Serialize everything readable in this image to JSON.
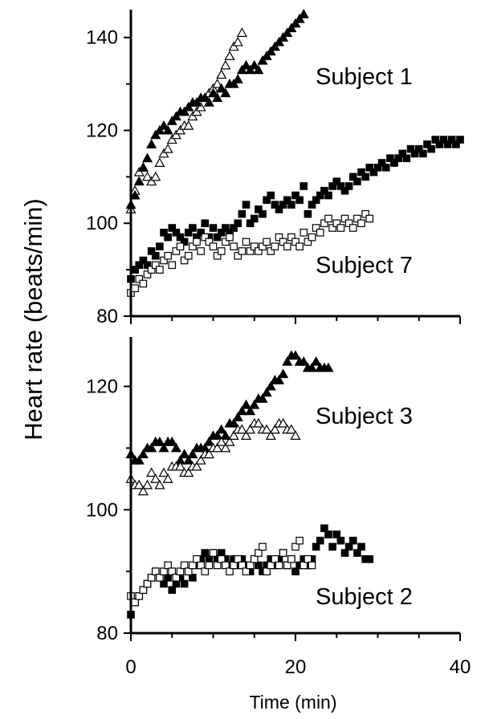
{
  "chart_data": {
    "type": "scatter",
    "ylabel": "Heart rate (beats/min)",
    "xlabel": "Time (min)",
    "x_ticks": [
      "0",
      "20",
      "40"
    ],
    "xlim": [
      0,
      40
    ],
    "grid": false,
    "panels": [
      {
        "name": "top",
        "ylim": [
          80,
          146
        ],
        "y_ticks": [
          "80",
          "100",
          "120",
          "140"
        ],
        "series": [
          {
            "label": "Subject 1",
            "marker": "open-triangle",
            "x": [
              0,
              0.5,
              1,
              1.5,
              2,
              2.5,
              3,
              3.5,
              4,
              4.5,
              5,
              5.5,
              6,
              6.5,
              7,
              7.5,
              8,
              8.5,
              9,
              9.5,
              10,
              10.5,
              11,
              11.5,
              12,
              12.5,
              13,
              13.5
            ],
            "y": [
              103,
              107,
              111,
              112,
              110,
              109,
              110,
              113,
              115,
              116,
              118,
              119,
              120,
              121,
              121,
              123,
              124,
              125,
              127,
              128,
              129,
              130,
              132,
              134,
              136,
              138,
              139,
              141
            ]
          },
          {
            "label": "Subject 1",
            "marker": "filled-triangle",
            "x": [
              0,
              0.5,
              1,
              1.5,
              2,
              2.5,
              3,
              3.5,
              4,
              4.5,
              5,
              5.5,
              6,
              6.5,
              7,
              7.5,
              8,
              8.5,
              9,
              9.5,
              10,
              10.5,
              11,
              11.5,
              12,
              12.5,
              13,
              13.5,
              14,
              14.5,
              15,
              15.5,
              16,
              16.5,
              17,
              17.5,
              18,
              18.5,
              19,
              19.5,
              20,
              20.5,
              21
            ],
            "y": [
              104,
              106,
              109,
              112,
              114,
              117,
              119,
              120,
              121,
              120,
              122,
              123,
              124,
              124,
              125,
              126,
              126,
              127,
              127,
              126,
              128,
              127,
              129,
              128,
              130,
              130,
              131,
              133,
              134,
              133,
              134,
              133,
              135,
              136,
              137,
              138,
              139,
              140,
              141,
              142,
              143,
              144,
              145
            ]
          },
          {
            "label": "Subject 7",
            "marker": "filled-square",
            "x": [
              0,
              0.5,
              1,
              1.5,
              2,
              2.5,
              3,
              3.5,
              4,
              4.5,
              5,
              5.5,
              6,
              6.5,
              7,
              7.5,
              8,
              8.5,
              9,
              9.5,
              10,
              10.5,
              11,
              11.5,
              12,
              12.5,
              13,
              13.5,
              14,
              14.5,
              15,
              15.5,
              16,
              16.5,
              17,
              17.5,
              18,
              18.5,
              19,
              19.5,
              20,
              20.5,
              21,
              21.5,
              22,
              22.5,
              23,
              23.5,
              24,
              24.5,
              25,
              25.5,
              26,
              26.5,
              27,
              27.5,
              28,
              28.5,
              29,
              29.5,
              30,
              30.5,
              31,
              31.5,
              32,
              32.5,
              33,
              33.5,
              34,
              34.5,
              35,
              35.5,
              36,
              36.5,
              37,
              37.5,
              38,
              38.5,
              39,
              39.5,
              40
            ],
            "y": [
              88,
              90,
              91,
              92,
              91,
              94,
              93,
              95,
              98,
              97,
              99,
              98,
              97,
              96,
              98,
              99,
              97,
              98,
              100,
              97,
              99,
              97,
              98,
              99,
              98,
              99,
              100,
              102,
              104,
              100,
              101,
              103,
              102,
              105,
              106,
              104,
              103,
              104,
              105,
              104,
              106,
              105,
              108,
              102,
              104,
              105,
              106,
              107,
              106,
              108,
              109,
              108,
              107,
              108,
              110,
              109,
              111,
              110,
              112,
              111,
              112,
              113,
              112,
              114,
              113,
              114,
              115,
              114,
              116,
              115,
              116,
              115,
              117,
              116,
              118,
              117,
              118,
              117,
              118,
              117,
              118
            ]
          },
          {
            "label": "Subject 7",
            "marker": "open-square",
            "x": [
              0,
              0.5,
              1,
              1.5,
              2,
              2.5,
              3,
              3.5,
              4,
              4.5,
              5,
              5.5,
              6,
              6.5,
              7,
              7.5,
              8,
              8.5,
              9,
              9.5,
              10,
              10.5,
              11,
              11.5,
              12,
              12.5,
              13,
              13.5,
              14,
              14.5,
              15,
              15.5,
              16,
              16.5,
              17,
              17.5,
              18,
              18.5,
              19,
              19.5,
              20,
              20.5,
              21,
              21.5,
              22,
              22.5,
              23,
              23.5,
              24,
              24.5,
              25,
              25.5,
              26,
              26.5,
              27,
              27.5,
              28,
              28.5,
              29
            ],
            "y": [
              85,
              86,
              88,
              87,
              89,
              90,
              91,
              90,
              92,
              93,
              91,
              94,
              95,
              92,
              93,
              95,
              96,
              94,
              97,
              96,
              95,
              93,
              94,
              96,
              97,
              95,
              93,
              94,
              96,
              94,
              95,
              94,
              95,
              96,
              94,
              95,
              97,
              96,
              95,
              97,
              96,
              95,
              98,
              96,
              97,
              99,
              98,
              100,
              101,
              99,
              100,
              99,
              101,
              100,
              99,
              101,
              100,
              102,
              101
            ]
          }
        ]
      },
      {
        "name": "bottom",
        "ylim": [
          80,
          128
        ],
        "y_ticks": [
          "80",
          "100",
          "120"
        ],
        "series": [
          {
            "label": "Subject 3",
            "marker": "filled-triangle",
            "x": [
              0,
              0.5,
              1,
              1.5,
              2,
              2.5,
              3,
              3.5,
              4,
              4.5,
              5,
              5.5,
              6,
              6.5,
              7,
              7.5,
              8,
              8.5,
              9,
              9.5,
              10,
              10.5,
              11,
              11.5,
              12,
              12.5,
              13,
              13.5,
              14,
              14.5,
              15,
              15.5,
              16,
              16.5,
              17,
              17.5,
              18,
              18.5,
              19,
              19.5,
              20,
              20.5,
              21,
              21.5,
              22,
              22.5,
              23,
              23.5,
              24
            ],
            "y": [
              109,
              108,
              108,
              109,
              110,
              110,
              111,
              111,
              110,
              111,
              111,
              110,
              108,
              109,
              108,
              109,
              110,
              110,
              110,
              111,
              112,
              112,
              113,
              112,
              114,
              114,
              115,
              116,
              117,
              116,
              117,
              118,
              118,
              119,
              120,
              121,
              121,
              122,
              124,
              125,
              125,
              124,
              124,
              123,
              123,
              124,
              123,
              123,
              123
            ]
          },
          {
            "label": "Subject 3",
            "marker": "open-triangle",
            "x": [
              0,
              0.5,
              1,
              1.5,
              2,
              2.5,
              3,
              3.5,
              4,
              4.5,
              5,
              5.5,
              6,
              6.5,
              7,
              7.5,
              8,
              8.5,
              9,
              9.5,
              10,
              10.5,
              11,
              11.5,
              12,
              12.5,
              13,
              13.5,
              14,
              14.5,
              15,
              15.5,
              16,
              16.5,
              17,
              17.5,
              18,
              18.5,
              19,
              19.5,
              20
            ],
            "y": [
              105,
              104,
              104,
              103,
              104,
              106,
              105,
              104,
              106,
              105,
              107,
              107,
              107,
              106,
              106,
              107,
              107,
              108,
              109,
              109,
              110,
              110,
              111,
              110,
              111,
              112,
              113,
              113,
              112,
              113,
              114,
              114,
              113,
              113,
              112,
              113,
              114,
              114,
              113,
              113,
              112
            ]
          },
          {
            "label": "Subject 2",
            "marker": "filled-square",
            "x": [
              0,
              0.5,
              1,
              1.5,
              2,
              2.5,
              3,
              3.5,
              4,
              4.5,
              5,
              5.5,
              6,
              6.5,
              7,
              7.5,
              8,
              8.5,
              9,
              9.5,
              10,
              10.5,
              11,
              11.5,
              12,
              12.5,
              13,
              13.5,
              14,
              14.5,
              15,
              15.5,
              16,
              16.5,
              17,
              17.5,
              18,
              18.5,
              19,
              19.5,
              20,
              20.5,
              21,
              21.5,
              22,
              22.5,
              23,
              23.5,
              24,
              24.5,
              25,
              25.5,
              26,
              26.5,
              27,
              27.5,
              28,
              28.5,
              29
            ],
            "y": [
              83,
              85,
              86,
              87,
              88,
              89,
              90,
              89,
              88,
              89,
              87,
              88,
              89,
              88,
              90,
              89,
              91,
              92,
              93,
              92,
              93,
              92,
              93,
              92,
              91,
              92,
              91,
              92,
              91,
              90,
              92,
              91,
              90,
              91,
              92,
              91,
              92,
              93,
              91,
              92,
              90,
              91,
              92,
              91,
              92,
              94,
              95,
              97,
              96,
              94,
              96,
              95,
              93,
              94,
              95,
              93,
              94,
              92,
              92
            ]
          },
          {
            "label": "Subject 2",
            "marker": "open-square",
            "x": [
              0,
              0.5,
              1,
              1.5,
              2,
              2.5,
              3,
              3.5,
              4,
              4.5,
              5,
              5.5,
              6,
              6.5,
              7,
              7.5,
              8,
              8.5,
              9,
              9.5,
              10,
              10.5,
              11,
              11.5,
              12,
              12.5,
              13,
              13.5,
              14,
              14.5,
              15,
              15.5,
              16,
              16.5,
              17,
              17.5,
              18,
              18.5,
              19,
              19.5,
              20,
              20.5,
              21,
              21.5,
              22
            ],
            "y": [
              86,
              85,
              86,
              87,
              88,
              89,
              90,
              89,
              90,
              91,
              90,
              89,
              90,
              91,
              90,
              91,
              92,
              91,
              90,
              91,
              93,
              91,
              92,
              91,
              90,
              91,
              92,
              91,
              90,
              91,
              92,
              93,
              94,
              90,
              91,
              92,
              91,
              93,
              91,
              92,
              94,
              95,
              91,
              92,
              91
            ]
          }
        ]
      }
    ]
  }
}
